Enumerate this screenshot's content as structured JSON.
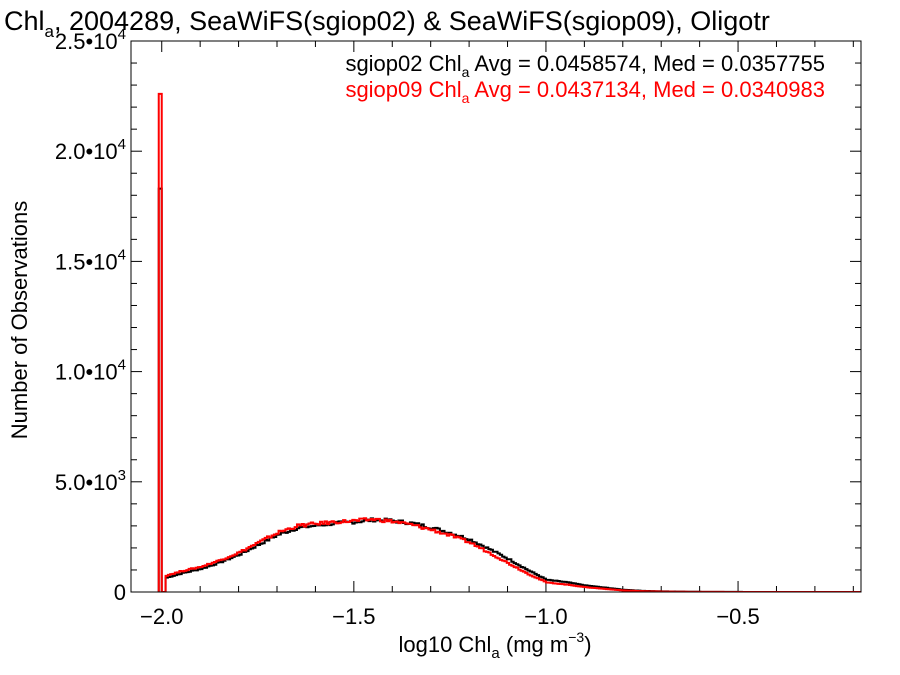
{
  "chart_data": {
    "type": "line",
    "title": {
      "before_sub": "Chl",
      "sub": "a",
      "after_sub": ", 2004289, SeaWiFS(sgiop02) & SeaWiFS(sgiop09), Oligotr"
    },
    "xlabel": {
      "before_sub": "log10 Chl",
      "sub": "a",
      "middle": " (mg m",
      "sup": "−3",
      "end": ")"
    },
    "ylabel": "Number of Observations",
    "xlim": [
      -2.08,
      -0.18
    ],
    "ylim": [
      0,
      25000
    ],
    "x_ticks": [
      {
        "value": -2.0,
        "label": "−2.0"
      },
      {
        "value": -1.5,
        "label": "−1.5"
      },
      {
        "value": -1.0,
        "label": "−1.0"
      },
      {
        "value": -0.5,
        "label": "−0.5"
      }
    ],
    "y_ticks": [
      {
        "value": 0,
        "mant": "0",
        "exp": ""
      },
      {
        "value": 5000,
        "mant": "5.0•10",
        "exp": "3"
      },
      {
        "value": 10000,
        "mant": "1.0•10",
        "exp": "4"
      },
      {
        "value": 15000,
        "mant": "1.5•10",
        "exp": "4"
      },
      {
        "value": 20000,
        "mant": "2.0•10",
        "exp": "4"
      },
      {
        "value": 25000,
        "mant": "2.5•10",
        "exp": "4"
      }
    ],
    "series": [
      {
        "color": "#000000",
        "legend": {
          "pre": "sgiop02 Chl",
          "sub": "a",
          "post": " Avg = 0.0458574, Med = 0.0357755"
        },
        "x": [
          -2.0,
          -2.0,
          -1.99,
          -1.95,
          -1.9,
          -1.85,
          -1.8,
          -1.75,
          -1.7,
          -1.65,
          -1.6,
          -1.55,
          -1.5,
          -1.45,
          -1.4,
          -1.35,
          -1.3,
          -1.25,
          -1.2,
          -1.15,
          -1.1,
          -1.05,
          -1.0,
          -0.95,
          -0.9,
          -0.85,
          -0.8,
          -0.75,
          -0.7,
          -0.65,
          -0.6,
          -0.55,
          -0.5,
          -0.45,
          -0.4,
          -0.35,
          -0.3,
          -0.25,
          -0.18
        ],
        "y": [
          18300,
          0,
          650,
          850,
          1050,
          1350,
          1700,
          2150,
          2600,
          2900,
          3020,
          3120,
          3180,
          3280,
          3230,
          3120,
          2920,
          2680,
          2380,
          1950,
          1500,
          1000,
          550,
          450,
          300,
          200,
          100,
          50,
          30,
          15,
          8,
          5,
          3,
          2,
          1,
          0,
          0,
          0,
          0
        ]
      },
      {
        "color": "#ff0000",
        "legend": {
          "pre": "sgiop09 Chl",
          "sub": "a",
          "post": " Avg = 0.0437134, Med = 0.0340983"
        },
        "x": [
          -2.0,
          -2.0,
          -1.99,
          -1.95,
          -1.9,
          -1.85,
          -1.8,
          -1.75,
          -1.7,
          -1.65,
          -1.6,
          -1.55,
          -1.5,
          -1.45,
          -1.4,
          -1.35,
          -1.3,
          -1.25,
          -1.2,
          -1.15,
          -1.1,
          -1.05,
          -1.0,
          -0.95,
          -0.9,
          -0.85,
          -0.8,
          -0.75,
          -0.7,
          -0.65,
          -0.6,
          -0.55,
          -0.5,
          -0.45,
          -0.4,
          -0.35,
          -0.3,
          -0.25,
          -0.18
        ],
        "y": [
          22600,
          0,
          750,
          950,
          1150,
          1450,
          1800,
          2250,
          2700,
          3000,
          3100,
          3180,
          3230,
          3300,
          3200,
          3040,
          2820,
          2560,
          2240,
          1780,
          1300,
          830,
          430,
          340,
          220,
          140,
          70,
          35,
          20,
          10,
          5,
          3,
          2,
          1,
          0,
          0,
          0,
          0,
          0
        ]
      }
    ]
  }
}
